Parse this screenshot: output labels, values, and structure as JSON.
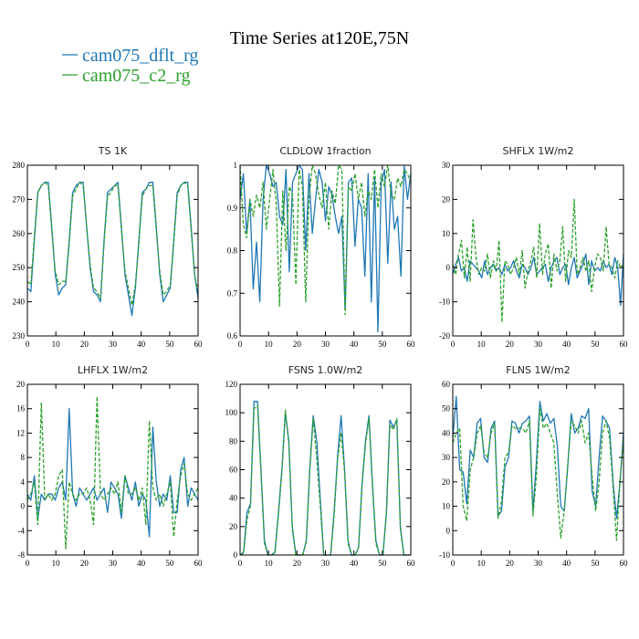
{
  "figure": {
    "title": "Time Series at120E,75N",
    "colors": {
      "dflt": "#1f77b4",
      "c2": "#2ca02c"
    },
    "legend": [
      {
        "label": "cam075_dflt_rg",
        "color": "#1f77b4"
      },
      {
        "label": "cam075_c2_rg",
        "color": "#2ca02c"
      }
    ]
  },
  "chart_data": [
    {
      "type": "line",
      "title": "TS   1K",
      "xlim": [
        0,
        60
      ],
      "ylim": [
        230,
        280
      ],
      "xticks": [
        0,
        10,
        20,
        30,
        40,
        50,
        60
      ],
      "yticks": [
        230,
        240,
        250,
        260,
        270,
        280
      ],
      "series": [
        {
          "name": "cam075_dflt_rg",
          "values": [
            244,
            243,
            258,
            272,
            274,
            275,
            275,
            262,
            248,
            242,
            244,
            245,
            258,
            272,
            274,
            275,
            275,
            262,
            250,
            243,
            242,
            240,
            258,
            272,
            273,
            274,
            275,
            262,
            248,
            242,
            236,
            244,
            258,
            272,
            273,
            275,
            275,
            262,
            248,
            240,
            242,
            244,
            258,
            272,
            274,
            275,
            275,
            262,
            248,
            241
          ]
        },
        {
          "name": "cam075_c2_rg",
          "values": [
            246,
            245,
            259,
            272,
            274,
            275,
            274,
            261,
            249,
            245,
            246,
            246,
            257,
            271,
            273,
            275,
            274,
            262,
            251,
            244,
            243,
            241,
            257,
            271,
            272,
            274,
            274,
            261,
            249,
            244,
            239,
            245,
            257,
            271,
            273,
            274,
            274,
            261,
            249,
            242,
            243,
            245,
            257,
            271,
            274,
            275,
            274,
            261,
            248,
            243
          ]
        }
      ]
    },
    {
      "type": "line",
      "title": "CLDLOW   1fraction",
      "xlim": [
        0,
        60
      ],
      "ylim": [
        0.6,
        1.0
      ],
      "xticks": [
        0,
        10,
        20,
        30,
        40,
        50,
        60
      ],
      "yticks": [
        0.6,
        0.7,
        0.8,
        0.9,
        1.0
      ],
      "series": [
        {
          "name": "cam075_dflt_rg",
          "values": [
            0.92,
            0.98,
            0.84,
            0.92,
            0.71,
            0.82,
            0.68,
            0.92,
            1.0,
            0.98,
            0.95,
            0.96,
            0.88,
            0.86,
            0.99,
            0.75,
            0.96,
            0.98,
            1.0,
            0.99,
            0.8,
            0.98,
            0.84,
            0.92,
            0.99,
            0.96,
            0.87,
            0.95,
            0.93,
            0.88,
            0.84,
            0.88,
            0.66,
            0.96,
            0.97,
            0.81,
            0.92,
            0.9,
            0.74,
            0.98,
            0.68,
            0.97,
            0.61,
            0.96,
            0.99,
            0.77,
            0.96,
            0.85,
            0.88,
            0.74,
            1.0,
            0.92,
            0.98
          ]
        },
        {
          "name": "cam075_c2_rg",
          "values": [
            1.0,
            0.86,
            0.83,
            0.92,
            0.88,
            0.93,
            0.9,
            0.96,
            0.85,
            0.92,
            0.99,
            0.91,
            0.67,
            0.94,
            0.8,
            0.95,
            0.93,
            0.72,
            0.99,
            0.95,
            0.68,
            0.92,
            1.0,
            0.98,
            0.93,
            0.9,
            0.96,
            0.85,
            0.94,
            0.91,
            1.0,
            0.99,
            0.65,
            0.95,
            0.94,
            0.98,
            0.92,
            0.96,
            0.88,
            0.94,
            0.92,
            0.99,
            0.9,
            0.98,
            0.95,
            1.0,
            0.93,
            0.92,
            0.97,
            0.95,
            0.99,
            0.98,
            0.96
          ]
        }
      ]
    },
    {
      "type": "line",
      "title": "SHFLX   1W/m2",
      "xlim": [
        0,
        60
      ],
      "ylim": [
        -20,
        30
      ],
      "xticks": [
        0,
        10,
        20,
        30,
        40,
        50,
        60
      ],
      "yticks": [
        -20,
        -10,
        0,
        10,
        20,
        30
      ],
      "series": [
        {
          "name": "cam075_dflt_rg",
          "values": [
            -2,
            1,
            3,
            -1,
            0,
            -4,
            2,
            1,
            0,
            -1,
            -3,
            2,
            -2,
            0,
            1,
            -1,
            0,
            -2,
            1,
            -1,
            0,
            2,
            -1,
            -3,
            1,
            0,
            -2,
            0,
            3,
            -2,
            -1,
            0,
            1,
            -4,
            0,
            2,
            3,
            -2,
            0,
            1,
            -5,
            0,
            3,
            -3,
            -1,
            1,
            4,
            -5,
            2,
            -1,
            0,
            -1,
            2,
            0,
            1,
            -2,
            3,
            0,
            -11,
            4
          ]
        },
        {
          "name": "cam075_c2_rg",
          "values": [
            1,
            -2,
            4,
            8,
            -3,
            6,
            -4,
            14,
            3,
            -2,
            0,
            -1,
            4,
            -3,
            2,
            -1,
            8,
            -16,
            2,
            1,
            -2,
            0,
            3,
            -2,
            5,
            -6,
            -1,
            2,
            6,
            -3,
            13,
            -2,
            4,
            7,
            -6,
            4,
            -1,
            2,
            12,
            -4,
            5,
            3,
            20,
            -2,
            0,
            3,
            -1,
            2,
            -7,
            0,
            4,
            3,
            -1,
            12,
            1,
            0,
            -3,
            2,
            0,
            1
          ]
        }
      ]
    },
    {
      "type": "line",
      "title": "LHFLX   1W/m2",
      "xlim": [
        0,
        60
      ],
      "ylim": [
        -8,
        20
      ],
      "xticks": [
        0,
        10,
        20,
        30,
        40,
        50,
        60
      ],
      "yticks": [
        -8,
        -4,
        0,
        4,
        8,
        12,
        16,
        20
      ],
      "series": [
        {
          "name": "cam075_dflt_rg",
          "values": [
            2,
            1,
            5,
            -2,
            2,
            1,
            2,
            2,
            1,
            3,
            4,
            1,
            16,
            2,
            0,
            3,
            2,
            1,
            2,
            3,
            1,
            2,
            3,
            -1,
            4,
            3,
            2,
            -2,
            5,
            3,
            1,
            4,
            0,
            2,
            1,
            -5,
            13,
            4,
            0,
            2,
            1,
            5,
            -1,
            -1,
            6,
            8,
            0,
            3,
            2,
            1
          ]
        },
        {
          "name": "cam075_c2_rg",
          "values": [
            1,
            2,
            4,
            -3,
            17,
            1,
            2,
            1,
            2,
            5,
            6,
            -7,
            4,
            2,
            1,
            2,
            2,
            3,
            1,
            -3,
            18,
            2,
            1,
            2,
            3,
            2,
            4,
            -1,
            5,
            2,
            2,
            3,
            1,
            3,
            -3,
            14,
            3,
            1,
            2,
            0,
            2,
            4,
            -5,
            1,
            5,
            7,
            2,
            1,
            2,
            3
          ]
        }
      ]
    },
    {
      "type": "line",
      "title": "FSNS   1.0W/m2",
      "xlim": [
        0,
        60
      ],
      "ylim": [
        0,
        120
      ],
      "xticks": [
        0,
        10,
        20,
        30,
        40,
        50,
        60
      ],
      "yticks": [
        0,
        20,
        40,
        60,
        80,
        100,
        120
      ],
      "series": [
        {
          "name": "cam075_dflt_rg",
          "values": [
            0,
            2,
            30,
            36,
            108,
            108,
            60,
            10,
            0,
            0,
            2,
            30,
            60,
            100,
            80,
            20,
            0,
            0,
            0,
            10,
            60,
            98,
            80,
            40,
            0,
            0,
            0,
            30,
            70,
            98,
            60,
            10,
            0,
            0,
            5,
            50,
            80,
            98,
            50,
            10,
            0,
            0,
            30,
            95,
            90,
            95,
            20,
            0,
            0,
            0
          ]
        },
        {
          "name": "cam075_c2_rg",
          "values": [
            0,
            1,
            25,
            35,
            103,
            105,
            58,
            8,
            0,
            0,
            1,
            28,
            58,
            102,
            78,
            18,
            0,
            0,
            0,
            9,
            58,
            96,
            68,
            35,
            0,
            0,
            0,
            28,
            68,
            86,
            58,
            8,
            0,
            0,
            5,
            48,
            78,
            96,
            48,
            8,
            0,
            0,
            28,
            92,
            88,
            96,
            18,
            0,
            0,
            0
          ]
        }
      ]
    },
    {
      "type": "line",
      "title": "FLNS   1W/m2",
      "xlim": [
        0,
        60
      ],
      "ylim": [
        -10,
        60
      ],
      "xticks": [
        0,
        10,
        20,
        30,
        40,
        50,
        60
      ],
      "yticks": [
        -10,
        0,
        10,
        20,
        30,
        40,
        50,
        60
      ],
      "series": [
        {
          "name": "cam075_dflt_rg",
          "values": [
            38,
            55,
            25,
            24,
            11,
            33,
            30,
            44,
            46,
            30,
            28,
            42,
            45,
            6,
            8,
            26,
            30,
            45,
            44,
            40,
            44,
            45,
            47,
            8,
            28,
            53,
            45,
            48,
            44,
            46,
            35,
            10,
            8,
            26,
            48,
            40,
            42,
            47,
            46,
            50,
            16,
            10,
            30,
            47,
            45,
            42,
            20,
            5,
            20,
            40
          ]
        },
        {
          "name": "cam075_c2_rg",
          "values": [
            36,
            40,
            42,
            10,
            4,
            25,
            30,
            40,
            43,
            32,
            30,
            40,
            44,
            5,
            12,
            30,
            32,
            43,
            42,
            42,
            42,
            40,
            45,
            6,
            22,
            50,
            42,
            44,
            40,
            36,
            15,
            -3,
            8,
            27,
            45,
            43,
            40,
            45,
            36,
            40,
            22,
            8,
            20,
            40,
            45,
            38,
            18,
            -4,
            20,
            38
          ]
        }
      ]
    }
  ]
}
